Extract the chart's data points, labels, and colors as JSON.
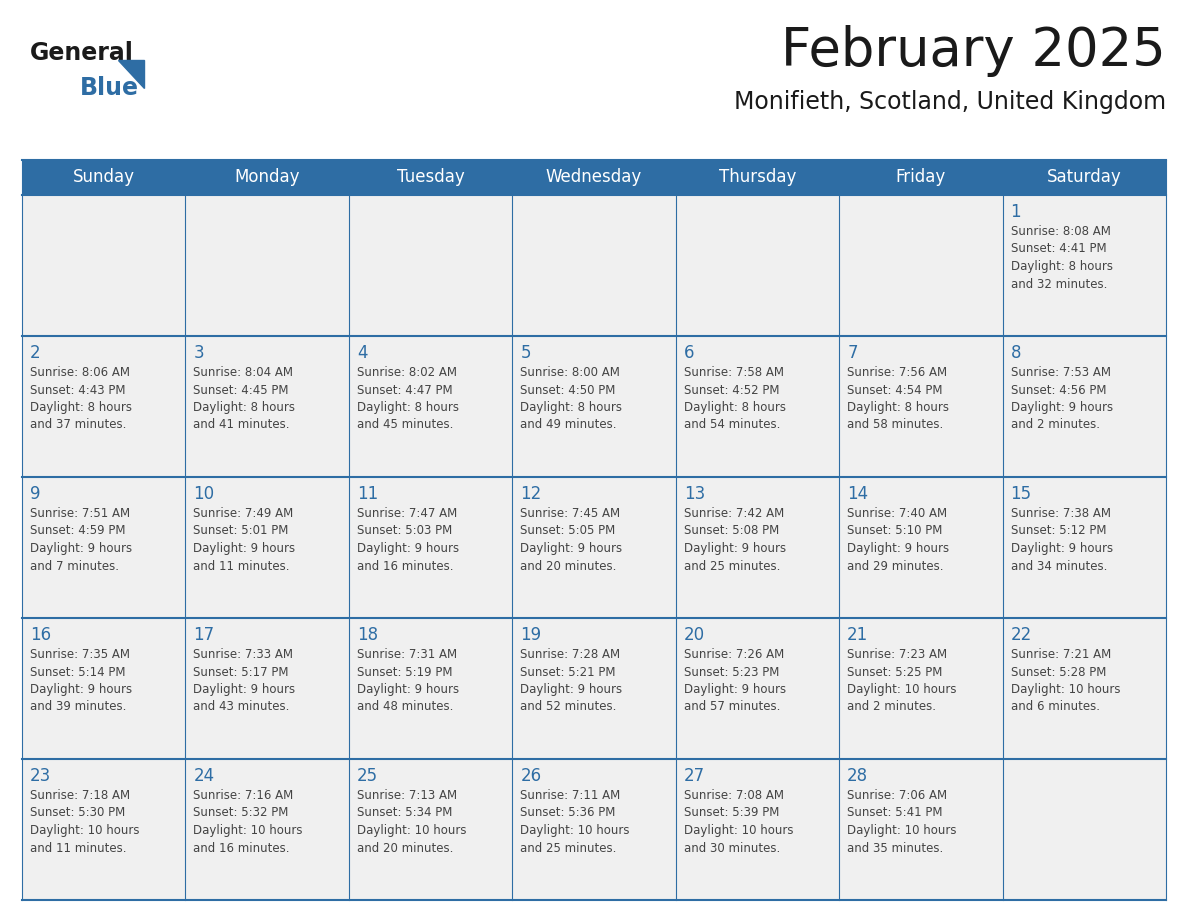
{
  "title": "February 2025",
  "subtitle": "Monifieth, Scotland, United Kingdom",
  "header_bg": "#2E6DA4",
  "header_text_color": "#FFFFFF",
  "cell_bg_light": "#F0F0F0",
  "cell_bg_white": "#FFFFFF",
  "day_number_color": "#2E6DA4",
  "cell_text_color": "#444444",
  "border_color": "#2E6DA4",
  "separator_color": "#2E6DA4",
  "days_of_week": [
    "Sunday",
    "Monday",
    "Tuesday",
    "Wednesday",
    "Thursday",
    "Friday",
    "Saturday"
  ],
  "calendar_data": [
    [
      null,
      null,
      null,
      null,
      null,
      null,
      1
    ],
    [
      2,
      3,
      4,
      5,
      6,
      7,
      8
    ],
    [
      9,
      10,
      11,
      12,
      13,
      14,
      15
    ],
    [
      16,
      17,
      18,
      19,
      20,
      21,
      22
    ],
    [
      23,
      24,
      25,
      26,
      27,
      28,
      null
    ]
  ],
  "sunrise_data": {
    "1": "Sunrise: 8:08 AM\nSunset: 4:41 PM\nDaylight: 8 hours\nand 32 minutes.",
    "2": "Sunrise: 8:06 AM\nSunset: 4:43 PM\nDaylight: 8 hours\nand 37 minutes.",
    "3": "Sunrise: 8:04 AM\nSunset: 4:45 PM\nDaylight: 8 hours\nand 41 minutes.",
    "4": "Sunrise: 8:02 AM\nSunset: 4:47 PM\nDaylight: 8 hours\nand 45 minutes.",
    "5": "Sunrise: 8:00 AM\nSunset: 4:50 PM\nDaylight: 8 hours\nand 49 minutes.",
    "6": "Sunrise: 7:58 AM\nSunset: 4:52 PM\nDaylight: 8 hours\nand 54 minutes.",
    "7": "Sunrise: 7:56 AM\nSunset: 4:54 PM\nDaylight: 8 hours\nand 58 minutes.",
    "8": "Sunrise: 7:53 AM\nSunset: 4:56 PM\nDaylight: 9 hours\nand 2 minutes.",
    "9": "Sunrise: 7:51 AM\nSunset: 4:59 PM\nDaylight: 9 hours\nand 7 minutes.",
    "10": "Sunrise: 7:49 AM\nSunset: 5:01 PM\nDaylight: 9 hours\nand 11 minutes.",
    "11": "Sunrise: 7:47 AM\nSunset: 5:03 PM\nDaylight: 9 hours\nand 16 minutes.",
    "12": "Sunrise: 7:45 AM\nSunset: 5:05 PM\nDaylight: 9 hours\nand 20 minutes.",
    "13": "Sunrise: 7:42 AM\nSunset: 5:08 PM\nDaylight: 9 hours\nand 25 minutes.",
    "14": "Sunrise: 7:40 AM\nSunset: 5:10 PM\nDaylight: 9 hours\nand 29 minutes.",
    "15": "Sunrise: 7:38 AM\nSunset: 5:12 PM\nDaylight: 9 hours\nand 34 minutes.",
    "16": "Sunrise: 7:35 AM\nSunset: 5:14 PM\nDaylight: 9 hours\nand 39 minutes.",
    "17": "Sunrise: 7:33 AM\nSunset: 5:17 PM\nDaylight: 9 hours\nand 43 minutes.",
    "18": "Sunrise: 7:31 AM\nSunset: 5:19 PM\nDaylight: 9 hours\nand 48 minutes.",
    "19": "Sunrise: 7:28 AM\nSunset: 5:21 PM\nDaylight: 9 hours\nand 52 minutes.",
    "20": "Sunrise: 7:26 AM\nSunset: 5:23 PM\nDaylight: 9 hours\nand 57 minutes.",
    "21": "Sunrise: 7:23 AM\nSunset: 5:25 PM\nDaylight: 10 hours\nand 2 minutes.",
    "22": "Sunrise: 7:21 AM\nSunset: 5:28 PM\nDaylight: 10 hours\nand 6 minutes.",
    "23": "Sunrise: 7:18 AM\nSunset: 5:30 PM\nDaylight: 10 hours\nand 11 minutes.",
    "24": "Sunrise: 7:16 AM\nSunset: 5:32 PM\nDaylight: 10 hours\nand 16 minutes.",
    "25": "Sunrise: 7:13 AM\nSunset: 5:34 PM\nDaylight: 10 hours\nand 20 minutes.",
    "26": "Sunrise: 7:11 AM\nSunset: 5:36 PM\nDaylight: 10 hours\nand 25 minutes.",
    "27": "Sunrise: 7:08 AM\nSunset: 5:39 PM\nDaylight: 10 hours\nand 30 minutes.",
    "28": "Sunrise: 7:06 AM\nSunset: 5:41 PM\nDaylight: 10 hours\nand 35 minutes."
  }
}
